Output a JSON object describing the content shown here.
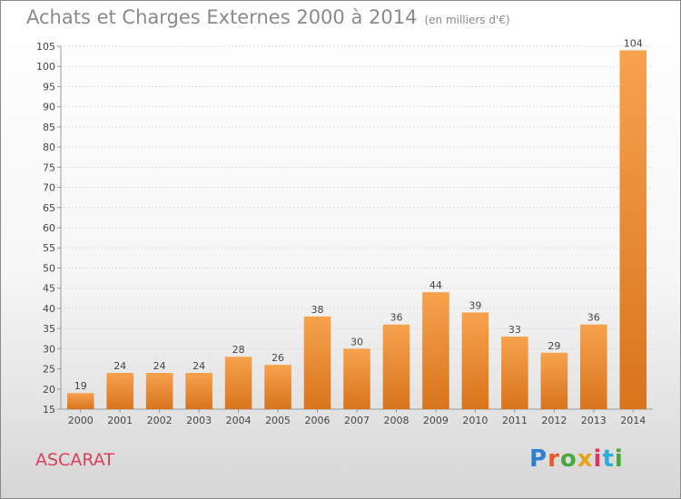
{
  "title": "Achats et Charges Externes 2000 à 2014",
  "subtitle": "(en milliers d'€)",
  "place": "ASCARAT",
  "logo": [
    "P",
    "r",
    "o",
    "x",
    "i",
    "t",
    "i"
  ],
  "colors": {
    "bar_light": "#f7a24e",
    "bar_dark": "#d8741c",
    "axis": "#9a9a9a",
    "grid": "#dddddd",
    "text": "#444444",
    "title": "#8a8a8a",
    "place": "#d9415e"
  },
  "chart_data": {
    "type": "bar",
    "title": "Achats et Charges Externes 2000 à 2014",
    "subtitle": "(en milliers d'€)",
    "categories": [
      "2000",
      "2001",
      "2002",
      "2003",
      "2004",
      "2005",
      "2006",
      "2007",
      "2008",
      "2009",
      "2010",
      "2011",
      "2012",
      "2013",
      "2014"
    ],
    "values": [
      19,
      24,
      24,
      24,
      28,
      26,
      38,
      30,
      36,
      44,
      39,
      33,
      29,
      36,
      104
    ],
    "ylim": [
      15,
      105
    ],
    "yticks": [
      15,
      20,
      25,
      30,
      35,
      40,
      45,
      50,
      55,
      60,
      65,
      70,
      75,
      80,
      85,
      90,
      95,
      100,
      105
    ],
    "grid": true,
    "legend": "none"
  }
}
